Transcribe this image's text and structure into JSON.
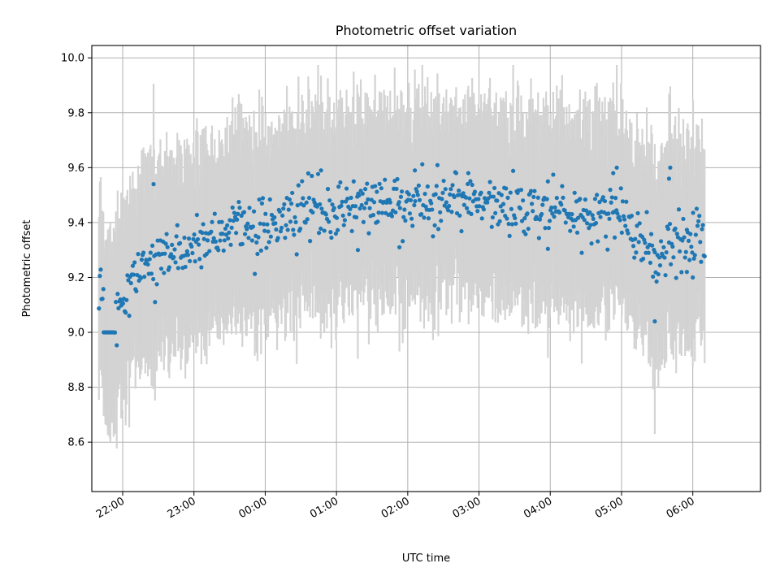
{
  "chart_data": {
    "type": "scatter",
    "title": "Photometric offset variation",
    "xlabel": "UTC time",
    "ylabel": "Photometric offset",
    "x_ticks": [
      "22:00",
      "23:00",
      "00:00",
      "01:00",
      "02:00",
      "03:00",
      "04:00",
      "05:00",
      "06:00"
    ],
    "x_range": [
      "21:34",
      "06:57"
    ],
    "y_ticks": [
      "8.6",
      "8.8",
      "9.0",
      "9.2",
      "9.4",
      "9.6",
      "9.8",
      "10.0"
    ],
    "ylim": [
      8.42,
      10.045
    ],
    "grid": true,
    "colors": {
      "points": "#1f77b4",
      "error_bars": "#d3d3d3"
    },
    "series": [
      {
        "style": "points with vertical error bars",
        "trend_x": [
          "21:40",
          "21:55",
          "22:10",
          "22:30",
          "23:00",
          "23:30",
          "00:00",
          "00:30",
          "01:00",
          "01:30",
          "02:00",
          "02:30",
          "03:00",
          "03:30",
          "04:00",
          "04:30",
          "05:00",
          "05:15",
          "05:30",
          "05:45",
          "06:00",
          "06:10"
        ],
        "trend_y": [
          9.13,
          9.05,
          9.17,
          9.27,
          9.31,
          9.38,
          9.4,
          9.42,
          9.44,
          9.47,
          9.48,
          9.49,
          9.48,
          9.46,
          9.45,
          9.44,
          9.42,
          9.33,
          9.26,
          9.33,
          9.33,
          9.35
        ],
        "point_spread": 0.05,
        "error_half_width": 0.33,
        "plateau_points": {
          "x_range": [
            "21:44",
            "21:53"
          ],
          "y": 9.0
        },
        "outliers": [
          {
            "x": "22:26",
            "y": 9.54
          },
          {
            "x": "00:47",
            "y": 9.59
          },
          {
            "x": "02:06",
            "y": 9.59
          },
          {
            "x": "02:51",
            "y": 9.58
          },
          {
            "x": "01:53",
            "y": 9.31
          },
          {
            "x": "01:18",
            "y": 9.3
          },
          {
            "x": "05:28",
            "y": 9.04
          },
          {
            "x": "04:56",
            "y": 9.6
          },
          {
            "x": "05:41",
            "y": 9.6
          },
          {
            "x": "05:40",
            "y": 9.56
          },
          {
            "x": "04:53",
            "y": 9.58
          },
          {
            "x": "03:58",
            "y": 9.55
          },
          {
            "x": "05:55",
            "y": 9.22
          },
          {
            "x": "06:00",
            "y": 9.2
          }
        ]
      }
    ]
  }
}
